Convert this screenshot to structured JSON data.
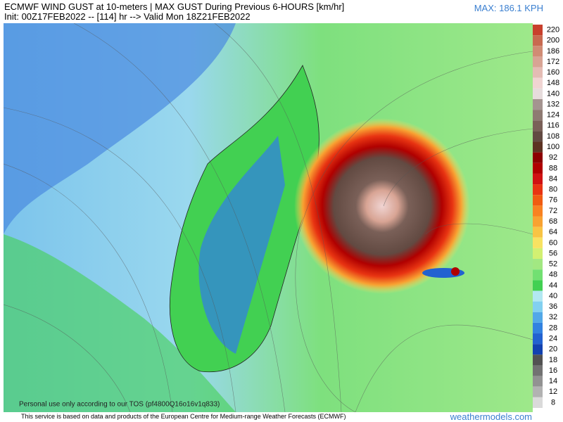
{
  "header": {
    "title": "ECMWF WIND GUST at 10-meters | MAX GUST During Previous 6-HOURS [km/hr]",
    "subtitle": "Init: 00Z17FEB2022 -- [114] hr --> Valid Mon 18Z21FEB2022",
    "max_label": "MAX: 186.1 KPH"
  },
  "legend": [
    {
      "value": 220,
      "color": "#c8402c"
    },
    {
      "value": 200,
      "color": "#c86a50"
    },
    {
      "value": 186,
      "color": "#d08c74"
    },
    {
      "value": 172,
      "color": "#d8a494"
    },
    {
      "value": 160,
      "color": "#e4bcb4"
    },
    {
      "value": 148,
      "color": "#f0d4d2"
    },
    {
      "value": 140,
      "color": "#e6dcdc"
    },
    {
      "value": 132,
      "color": "#a49490"
    },
    {
      "value": 124,
      "color": "#8e7a72"
    },
    {
      "value": 116,
      "color": "#7a6058"
    },
    {
      "value": 108,
      "color": "#624a42"
    },
    {
      "value": 100,
      "color": "#5c3222"
    },
    {
      "value": 92,
      "color": "#8c0000"
    },
    {
      "value": 88,
      "color": "#b00000"
    },
    {
      "value": 84,
      "color": "#d01212"
    },
    {
      "value": 80,
      "color": "#e83412"
    },
    {
      "value": 76,
      "color": "#f05c12"
    },
    {
      "value": 72,
      "color": "#f88222"
    },
    {
      "value": 68,
      "color": "#f8a232"
    },
    {
      "value": 64,
      "color": "#f8c444"
    },
    {
      "value": 60,
      "color": "#f8e262"
    },
    {
      "value": 56,
      "color": "#d2f072"
    },
    {
      "value": 52,
      "color": "#a2e882"
    },
    {
      "value": 48,
      "color": "#72e072"
    },
    {
      "value": 44,
      "color": "#42d052"
    },
    {
      "value": 40,
      "color": "#b2e8f2"
    },
    {
      "value": 36,
      "color": "#82d0f0"
    },
    {
      "value": 32,
      "color": "#52a8e8"
    },
    {
      "value": 28,
      "color": "#3282e0"
    },
    {
      "value": 24,
      "color": "#2262d0"
    },
    {
      "value": 20,
      "color": "#1242b0"
    },
    {
      "value": 18,
      "color": "#525252"
    },
    {
      "value": 16,
      "color": "#727272"
    },
    {
      "value": 14,
      "color": "#929292"
    },
    {
      "value": 12,
      "color": "#b2b2b2"
    },
    {
      "value": 8,
      "color": "#dadada"
    }
  ],
  "watermark": "Personal use only according to our TOS (pf4800Q16o16v1q833)",
  "footer": {
    "notice": "This service is based on data and products of the European Centre for Medium-range Weather Forecasts (ECMWF)",
    "site": "weathermodels.com"
  }
}
